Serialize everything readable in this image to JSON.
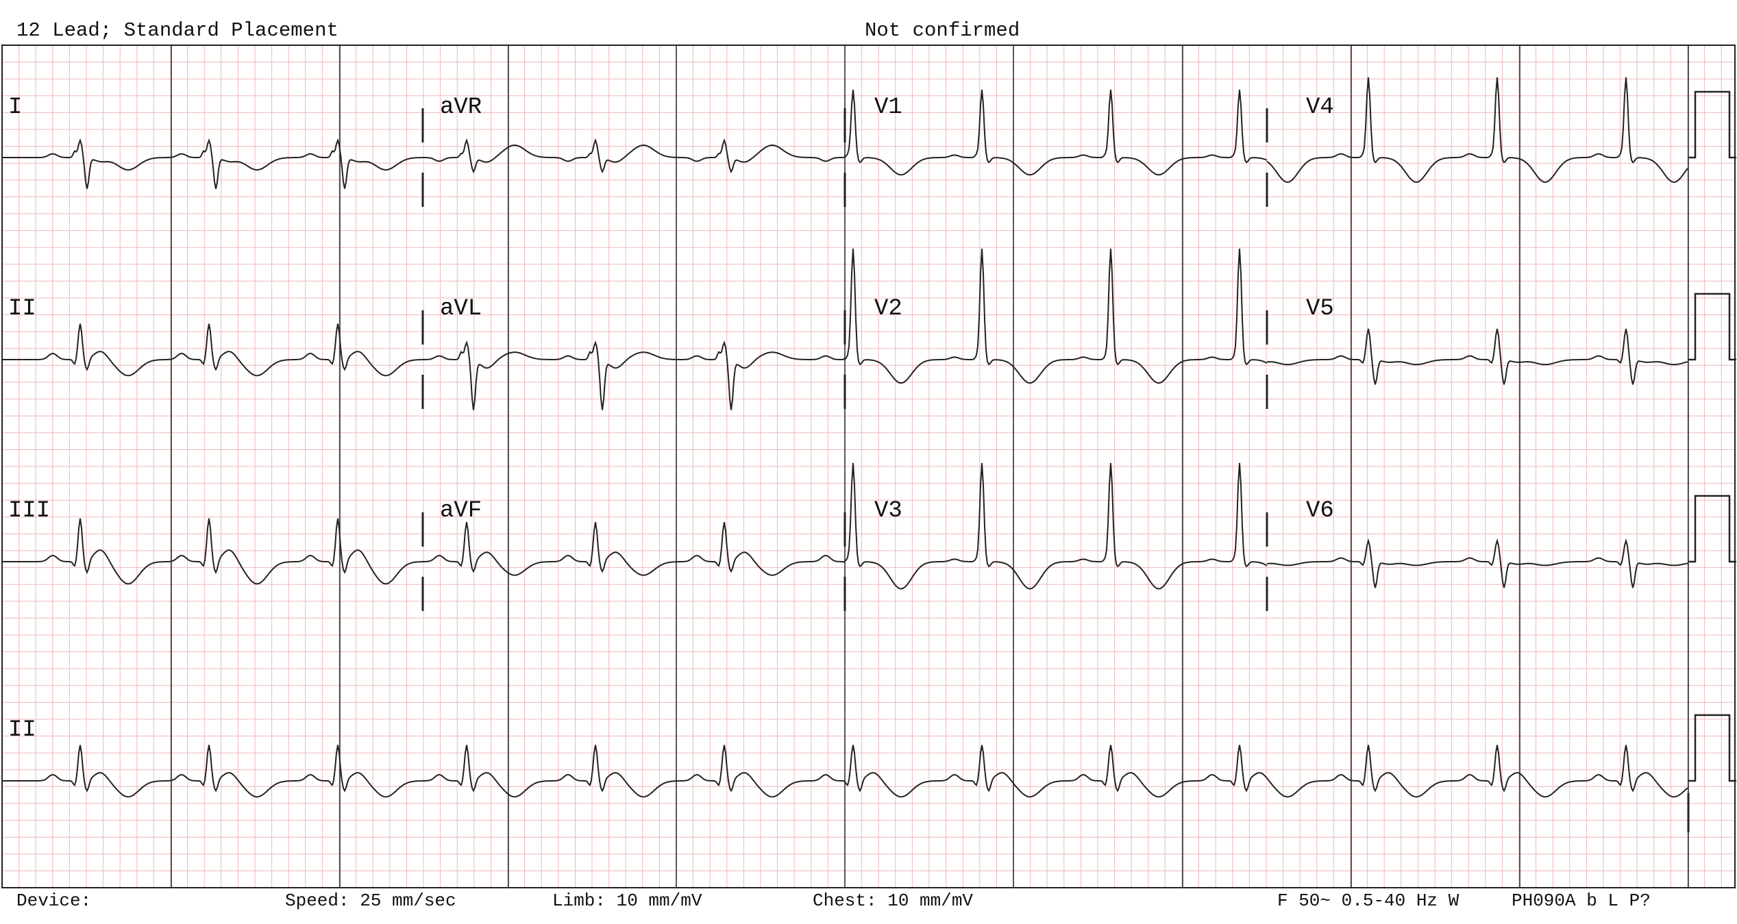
{
  "header": {
    "left": "12 Lead; Standard Placement",
    "center": "Not confirmed"
  },
  "leads": {
    "row1": [
      "I",
      "aVR",
      "V1",
      "V4"
    ],
    "row2": [
      "II",
      "aVL",
      "V2",
      "V5"
    ],
    "row3": [
      "III",
      "aVF",
      "V3",
      "V6"
    ],
    "rhythm": "II"
  },
  "footer": {
    "device": "Device:",
    "speed": "Speed: 25 mm/sec",
    "limb": "Limb: 10 mm/mV",
    "chest": "Chest: 10 mm/mV",
    "filter": "F 50~ 0.5-40 Hz W",
    "code": "PH090A b L P?"
  },
  "colors": {
    "grid": "#f0b8b8",
    "major": "#222222",
    "trace": "#222222",
    "text": "#111111"
  }
}
